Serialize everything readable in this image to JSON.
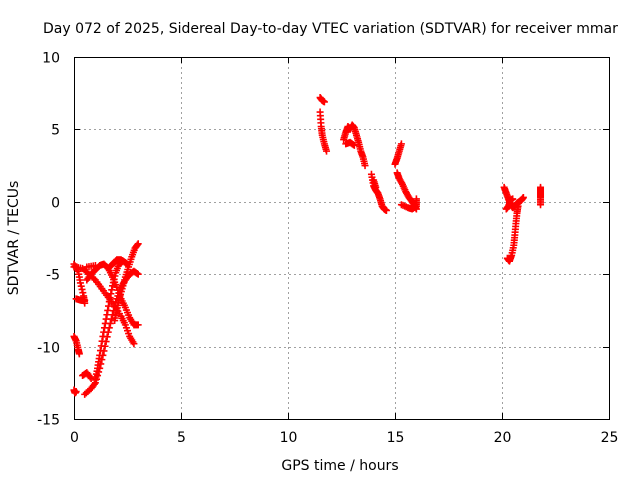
{
  "chart_data": {
    "type": "scatter",
    "title": "Day 072 of 2025, Sidereal Day-to-day VTEC variation (SDTVAR) for receiver mmar",
    "xlabel": "GPS time / hours",
    "ylabel": "SDTVAR / TECUs",
    "xlim": [
      0,
      25
    ],
    "ylim": [
      -15,
      10
    ],
    "x_ticks": [
      "0",
      "5",
      "10",
      "15",
      "20",
      "25"
    ],
    "y_ticks": [
      "10",
      "5",
      "0",
      "-5",
      "-10",
      "-15"
    ],
    "grid": true,
    "legend": "none",
    "marker": "plus",
    "color": "#ff0000",
    "series": [
      {
        "segments": [
          [
            [
              0.0,
              -13.0
            ],
            [
              0.05,
              -13.2
            ],
            [
              0.1,
              -13.1
            ]
          ],
          [
            [
              0.0,
              -9.3
            ],
            [
              0.1,
              -9.6
            ],
            [
              0.2,
              -10.2
            ],
            [
              0.25,
              -10.5
            ]
          ],
          [
            [
              0.0,
              -4.3
            ],
            [
              0.2,
              -4.8
            ],
            [
              0.3,
              -5.6
            ],
            [
              0.45,
              -6.5
            ],
            [
              0.5,
              -7.0
            ]
          ],
          [
            [
              0.1,
              -6.7
            ],
            [
              0.3,
              -6.8
            ],
            [
              0.5,
              -6.8
            ]
          ],
          [
            [
              0.0,
              -4.5
            ],
            [
              0.4,
              -4.6
            ],
            [
              0.7,
              -5.0
            ],
            [
              1.0,
              -5.4
            ],
            [
              1.3,
              -6.0
            ],
            [
              1.6,
              -6.6
            ],
            [
              1.9,
              -7.2
            ],
            [
              2.2,
              -7.9
            ],
            [
              2.4,
              -8.5
            ],
            [
              2.6,
              -9.3
            ],
            [
              2.8,
              -9.8
            ]
          ],
          [
            [
              0.5,
              -13.3
            ],
            [
              0.8,
              -12.9
            ],
            [
              1.0,
              -12.5
            ],
            [
              1.2,
              -11.5
            ],
            [
              1.4,
              -10.3
            ],
            [
              1.6,
              -9.0
            ],
            [
              1.8,
              -7.8
            ],
            [
              2.0,
              -6.7
            ],
            [
              2.2,
              -5.9
            ],
            [
              2.4,
              -5.4
            ],
            [
              2.6,
              -5.0
            ],
            [
              2.8,
              -4.8
            ],
            [
              3.0,
              -5.0
            ]
          ],
          [
            [
              0.4,
              -12.0
            ],
            [
              0.6,
              -11.8
            ],
            [
              0.8,
              -12.2
            ]
          ],
          [
            [
              1.0,
              -12.3
            ],
            [
              1.1,
              -11.5
            ],
            [
              1.2,
              -10.6
            ],
            [
              1.35,
              -9.3
            ],
            [
              1.5,
              -8.1
            ],
            [
              1.65,
              -6.9
            ],
            [
              1.8,
              -5.8
            ],
            [
              1.95,
              -4.9
            ],
            [
              2.1,
              -4.3
            ],
            [
              2.3,
              -4.1
            ],
            [
              2.5,
              -4.3
            ]
          ],
          [
            [
              0.6,
              -5.4
            ],
            [
              0.8,
              -5.0
            ],
            [
              1.0,
              -4.7
            ],
            [
              1.2,
              -4.4
            ],
            [
              1.4,
              -4.3
            ],
            [
              1.6,
              -4.6
            ],
            [
              1.8,
              -5.2
            ],
            [
              2.0,
              -5.9
            ],
            [
              2.2,
              -6.7
            ],
            [
              2.4,
              -7.3
            ],
            [
              2.6,
              -8.0
            ],
            [
              2.8,
              -8.5
            ],
            [
              3.0,
              -8.5
            ]
          ],
          [
            [
              0.6,
              -4.5
            ],
            [
              1.0,
              -4.4
            ]
          ],
          [
            [
              1.9,
              -8.2
            ],
            [
              2.0,
              -7.5
            ],
            [
              2.1,
              -6.8
            ],
            [
              2.25,
              -6.0
            ],
            [
              2.4,
              -5.2
            ],
            [
              2.55,
              -4.5
            ],
            [
              2.7,
              -3.8
            ],
            [
              2.85,
              -3.2
            ],
            [
              3.0,
              -2.9
            ]
          ],
          [
            [
              1.6,
              -4.6
            ],
            [
              1.8,
              -4.3
            ],
            [
              2.0,
              -4.0
            ],
            [
              2.2,
              -4.0
            ],
            [
              2.4,
              -4.2
            ]
          ]
        ]
      },
      {
        "segments": [
          [
            [
              11.5,
              7.2
            ],
            [
              11.6,
              7.0
            ],
            [
              11.7,
              6.9
            ]
          ],
          [
            [
              11.5,
              6.2
            ],
            [
              11.55,
              5.2
            ],
            [
              11.6,
              4.6
            ],
            [
              11.7,
              4.0
            ],
            [
              11.8,
              3.5
            ]
          ]
        ]
      },
      {
        "segments": [
          [
            [
              12.6,
              4.3
            ],
            [
              12.7,
              4.8
            ],
            [
              12.8,
              5.2
            ],
            [
              12.9,
              5.0
            ],
            [
              13.0,
              5.3
            ],
            [
              13.1,
              5.1
            ],
            [
              13.2,
              4.6
            ],
            [
              13.3,
              4.1
            ],
            [
              13.4,
              3.5
            ],
            [
              13.5,
              3.1
            ],
            [
              13.6,
              2.5
            ]
          ],
          [
            [
              12.7,
              4.0
            ],
            [
              12.9,
              4.1
            ],
            [
              13.1,
              3.9
            ]
          ]
        ]
      },
      {
        "segments": [
          [
            [
              13.9,
              1.9
            ],
            [
              14.0,
              1.1
            ],
            [
              14.1,
              0.8
            ],
            [
              14.2,
              0.6
            ],
            [
              14.3,
              0.2
            ],
            [
              14.4,
              -0.3
            ],
            [
              14.5,
              -0.5
            ],
            [
              14.6,
              -0.6
            ]
          ],
          [
            [
              14.0,
              1.5
            ],
            [
              14.1,
              1.0
            ]
          ]
        ]
      },
      {
        "segments": [
          [
            [
              15.0,
              2.6
            ],
            [
              15.1,
              3.0
            ],
            [
              15.2,
              3.5
            ],
            [
              15.3,
              4.0
            ]
          ],
          [
            [
              15.1,
              2.0
            ],
            [
              15.2,
              1.6
            ],
            [
              15.35,
              1.2
            ],
            [
              15.5,
              0.7
            ],
            [
              15.65,
              0.3
            ],
            [
              15.8,
              0.0
            ],
            [
              15.9,
              -0.2
            ],
            [
              16.0,
              -0.5
            ]
          ],
          [
            [
              15.3,
              -0.2
            ],
            [
              15.6,
              -0.4
            ],
            [
              15.8,
              -0.5
            ],
            [
              16.0,
              -0.3
            ],
            [
              16.0,
              0.2
            ]
          ]
        ]
      },
      {
        "segments": [
          [
            [
              20.1,
              1.0
            ],
            [
              20.2,
              0.6
            ],
            [
              20.3,
              0.2
            ],
            [
              20.4,
              -0.2
            ],
            [
              20.5,
              -0.4
            ],
            [
              20.6,
              -0.3
            ],
            [
              20.7,
              -0.1
            ],
            [
              20.8,
              0.0
            ],
            [
              20.9,
              0.1
            ],
            [
              21.0,
              0.3
            ]
          ],
          [
            [
              20.2,
              -0.5
            ],
            [
              20.3,
              -0.3
            ],
            [
              20.4,
              0.1
            ],
            [
              20.5,
              0.2
            ]
          ],
          [
            [
              20.25,
              -3.9
            ],
            [
              20.35,
              -4.1
            ],
            [
              20.45,
              -3.7
            ],
            [
              20.55,
              -3.0
            ],
            [
              20.6,
              -2.3
            ],
            [
              20.65,
              -1.5
            ],
            [
              20.7,
              -0.8
            ],
            [
              20.75,
              -0.3
            ]
          ],
          [
            [
              21.8,
              1.0
            ],
            [
              21.8,
              0.6
            ],
            [
              21.8,
              0.3
            ],
            [
              21.8,
              -0.2
            ]
          ]
        ]
      }
    ]
  }
}
